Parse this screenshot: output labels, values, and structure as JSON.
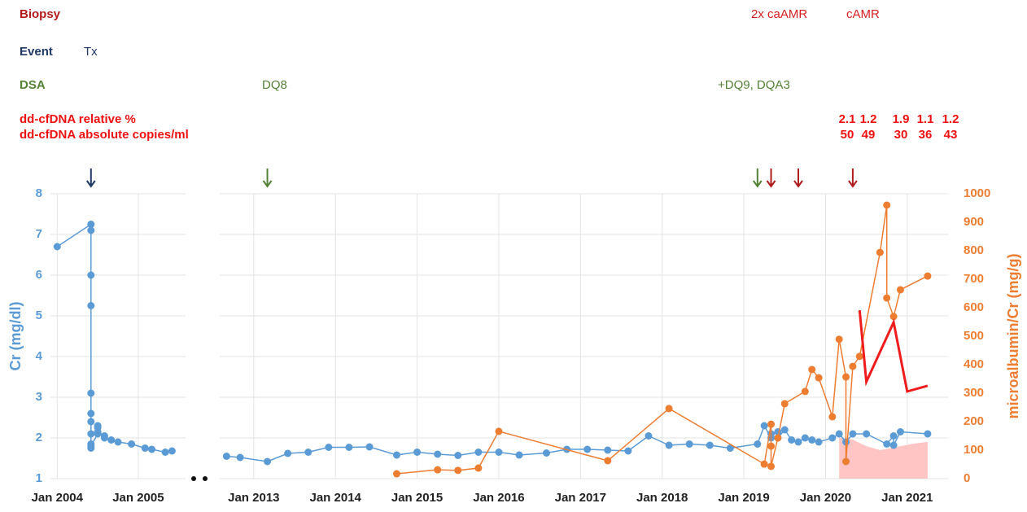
{
  "header": {
    "biopsy": {
      "label": "Biopsy",
      "items": [
        "2x caAMR",
        "cAMR"
      ],
      "color": "#b01c1c",
      "item_color": "#d62020"
    },
    "event": {
      "label": "Event",
      "items": [
        "Tx"
      ],
      "color": "#1f3864",
      "item_color": "#1f3864"
    },
    "dsa": {
      "label": "DSA",
      "items": [
        "DQ8",
        "+DQ9, DQA3"
      ],
      "color": "#538135",
      "item_color": "#538135"
    },
    "cfdna": {
      "relative_label": "dd-cfDNA relative %",
      "relative": [
        2.1,
        1.2,
        1.9,
        1.1,
        1.2
      ],
      "absolute_label": "dd-cfDNA absolute copies/ml",
      "absolute": [
        50,
        49,
        30,
        36,
        43
      ],
      "color": "#ee1111"
    }
  },
  "chart_data": {
    "type": "line",
    "ylabel": "Cr (mg/dl)",
    "y2label": "microalbumin/Cr (mg/g)",
    "ylim": [
      1,
      8
    ],
    "yticks": [
      1,
      2,
      3,
      4,
      5,
      6,
      7,
      8
    ],
    "y2lim": [
      0,
      1000
    ],
    "y2ticks": [
      0,
      100,
      200,
      300,
      400,
      500,
      600,
      700,
      800,
      900,
      1000
    ],
    "ycolor": "#5b9bd5",
    "y2color": "#ed7d31",
    "grid": true,
    "panels": [
      {
        "xlim": [
          "2003-12",
          "2005-08"
        ],
        "xticks": [
          {
            "value": "2004-01",
            "label": "Jan 2004"
          },
          {
            "value": "2005-01",
            "label": "Jan 2005"
          }
        ],
        "arrows": [
          {
            "x": "2004-06",
            "color": "#1f3864"
          }
        ],
        "series": [
          {
            "type": "line",
            "axis": "y",
            "color": "#5b9bd5",
            "markers": true,
            "x": [
              "2004-01",
              "2004-06",
              "2004-06",
              "2004-06",
              "2004-06",
              "2004-06",
              "2004-06",
              "2004-06",
              "2004-06",
              "2004-06",
              "2004-06",
              "2004-06",
              "2004-07",
              "2004-07",
              "2004-07",
              "2004-07",
              "2004-08",
              "2004-08",
              "2004-09",
              "2004-10",
              "2004-12",
              "2005-02",
              "2005-03",
              "2005-05",
              "2005-06"
            ],
            "values": [
              6.7,
              7.25,
              7.1,
              6.0,
              5.25,
              3.1,
              2.6,
              2.4,
              2.1,
              1.85,
              1.75,
              1.8,
              2.1,
              2.25,
              2.3,
              2.15,
              2.05,
              2.0,
              1.95,
              1.9,
              1.85,
              1.75,
              1.72,
              1.65,
              1.68
            ]
          }
        ]
      },
      {
        "xlim": [
          "2012-08",
          "2021-07"
        ],
        "xticks": [
          {
            "value": "2013-01",
            "label": "Jan 2013"
          },
          {
            "value": "2014-01",
            "label": "Jan 2014"
          },
          {
            "value": "2015-01",
            "label": "Jan 2015"
          },
          {
            "value": "2016-01",
            "label": "Jan 2016"
          },
          {
            "value": "2017-01",
            "label": "Jan 2017"
          },
          {
            "value": "2018-01",
            "label": "Jan 2018"
          },
          {
            "value": "2019-01",
            "label": "Jan 2019"
          },
          {
            "value": "2020-01",
            "label": "Jan 2020"
          },
          {
            "value": "2021-01",
            "label": "Jan 2021"
          }
        ],
        "arrows": [
          {
            "x": "2013-03",
            "color": "#538135"
          },
          {
            "x": "2019-03",
            "color": "#538135"
          },
          {
            "x": "2019-05",
            "color": "#b01c1c"
          },
          {
            "x": "2019-09",
            "color": "#b01c1c"
          },
          {
            "x": "2020-05",
            "color": "#b01c1c"
          }
        ],
        "series": [
          {
            "type": "area",
            "axis": "y2",
            "color": "#ffc4c4",
            "markers": false,
            "x": [
              "2020-03",
              "2020-05",
              "2020-07",
              "2020-09",
              "2020-12",
              "2021-02",
              "2021-04"
            ],
            "values": [
              143,
              137,
              114,
              100,
              114,
              123,
              129
            ]
          },
          {
            "type": "line",
            "axis": "y",
            "color": "#5b9bd5",
            "markers": true,
            "x": [
              "2012-09",
              "2012-11",
              "2013-03",
              "2013-06",
              "2013-09",
              "2013-12",
              "2014-03",
              "2014-06",
              "2014-10",
              "2015-01",
              "2015-04",
              "2015-07",
              "2015-10",
              "2016-01",
              "2016-04",
              "2016-08",
              "2016-11",
              "2017-02",
              "2017-05",
              "2017-08",
              "2017-11",
              "2018-02",
              "2018-05",
              "2018-08",
              "2018-11",
              "2019-03",
              "2019-04",
              "2019-05",
              "2019-05",
              "2019-06",
              "2019-06",
              "2019-07",
              "2019-08",
              "2019-09",
              "2019-10",
              "2019-11",
              "2019-12",
              "2020-02",
              "2020-03",
              "2020-04",
              "2020-05",
              "2020-07",
              "2020-10",
              "2020-11",
              "2020-11",
              "2020-12",
              "2021-04"
            ],
            "values": [
              1.55,
              1.52,
              1.42,
              1.62,
              1.65,
              1.77,
              1.77,
              1.78,
              1.58,
              1.65,
              1.6,
              1.57,
              1.65,
              1.65,
              1.58,
              1.63,
              1.72,
              1.72,
              1.7,
              1.68,
              2.05,
              1.82,
              1.85,
              1.82,
              1.75,
              1.85,
              2.3,
              2.0,
              2.1,
              2.15,
              2.0,
              2.2,
              1.95,
              1.9,
              2.0,
              1.95,
              1.9,
              2.0,
              2.1,
              1.9,
              2.1,
              2.1,
              1.85,
              2.05,
              1.82,
              2.15,
              2.1
            ]
          },
          {
            "type": "line",
            "axis": "y2",
            "color": "#ed7d31",
            "markers": true,
            "x": [
              "2014-10",
              "2015-04",
              "2015-07",
              "2015-10",
              "2016-01",
              "2017-05",
              "2018-02",
              "2019-04",
              "2019-05",
              "2019-05",
              "2019-05",
              "2019-06",
              "2019-07",
              "2019-10",
              "2019-11",
              "2019-12",
              "2020-02",
              "2020-03",
              "2020-04",
              "2020-04",
              "2020-05",
              "2020-06",
              "2020-09",
              "2020-10",
              "2020-10",
              "2020-11",
              "2020-12",
              "2021-04"
            ],
            "values": [
              17,
              31,
              29,
              37,
              166,
              63,
              246,
              51,
              191,
              114,
              43,
              143,
              263,
              306,
              383,
              354,
              217,
              489,
              357,
              60,
              394,
              429,
              794,
              960,
              634,
              569,
              663,
              711
            ]
          },
          {
            "type": "line",
            "axis": "y2",
            "color": "#ee1c1c",
            "markers": false,
            "width": 3,
            "x": [
              "2020-06",
              "2020-07",
              "2020-11",
              "2021-01",
              "2021-04"
            ],
            "values": [
              591,
              340,
              549,
              306,
              326
            ]
          }
        ]
      }
    ]
  }
}
